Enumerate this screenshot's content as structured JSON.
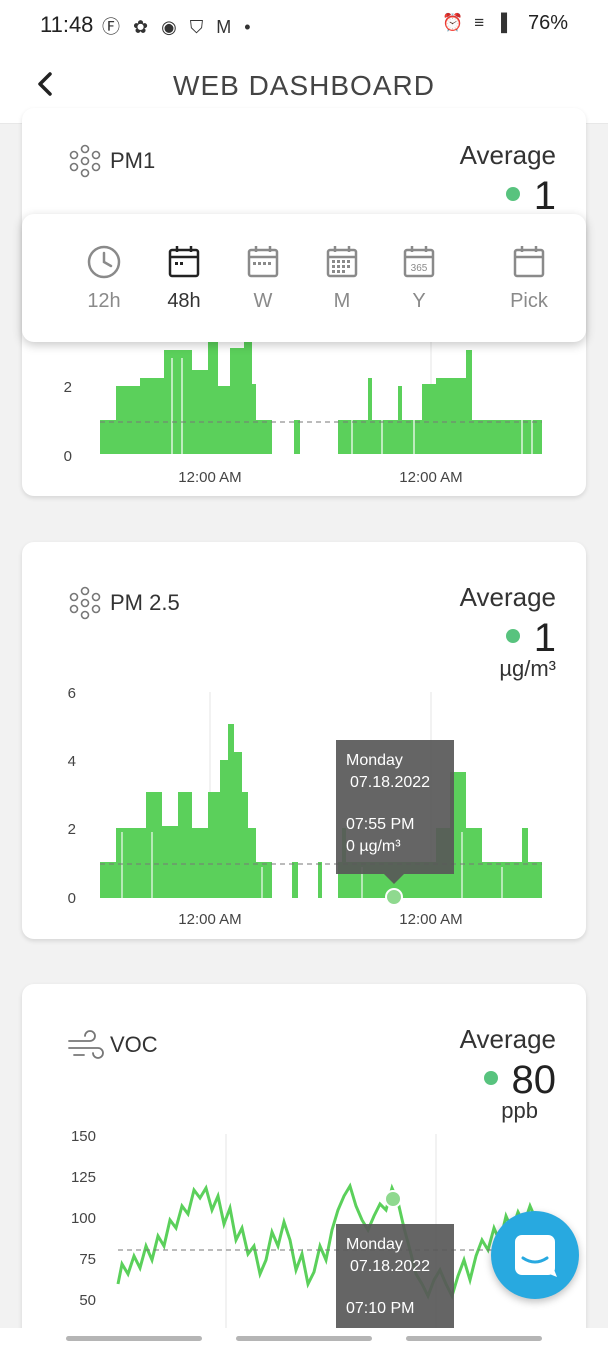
{
  "status_bar": {
    "time": "11:48",
    "left_icons": "Ⓕ ✿ ◉ ⛉ M •",
    "right_icons": "⏰ ≡ ▐",
    "battery": "76%"
  },
  "header": {
    "title": "WEB DASHBOARD",
    "back_icon": "back-arrow-icon"
  },
  "range_selector": {
    "options": [
      {
        "label": "12h",
        "icon": "clock-icon",
        "active": false
      },
      {
        "label": "48h",
        "icon": "calendar-icon",
        "active": true
      },
      {
        "label": "W",
        "icon": "calendar-week-icon",
        "active": false
      },
      {
        "label": "M",
        "icon": "calendar-month-icon",
        "active": false
      },
      {
        "label": "Y",
        "icon": "calendar-365-icon",
        "icon_text": "365",
        "active": false
      },
      {
        "label": "Pick",
        "icon": "calendar-pick-icon",
        "active": false
      }
    ]
  },
  "cards": {
    "pm1": {
      "name": "PM1",
      "icon": "particles-icon",
      "average_label": "Average",
      "average_value": "1",
      "chart_data": {
        "type": "line",
        "series_color": "#5bd05b",
        "average_line": 1,
        "y_ticks": [
          "0",
          "2"
        ],
        "x_ticks": [
          "12:00 AM",
          "12:00 AM"
        ]
      }
    },
    "pm25": {
      "name": "PM 2.5",
      "icon": "particles-icon",
      "average_label": "Average",
      "average_value": "1",
      "unit": "µg/m³",
      "chart_data": {
        "type": "line",
        "series_color": "#5bd05b",
        "average_line": 1,
        "y_ticks": [
          "0",
          "2",
          "4",
          "6"
        ],
        "ylim": [
          0,
          6
        ],
        "x_ticks": [
          "12:00 AM",
          "12:00 AM"
        ]
      },
      "tooltip": {
        "day": "Monday",
        "date": "07.18.2022",
        "time": "07:55 PM",
        "value": "0 µg/m³"
      }
    },
    "voc": {
      "name": "VOC",
      "icon": "wind-icon",
      "average_label": "Average",
      "average_value": "80",
      "unit": "ppb",
      "chart_data": {
        "type": "line",
        "series_color": "#5bd05b",
        "average_line": 80,
        "y_ticks": [
          "50",
          "75",
          "100",
          "125",
          "150"
        ],
        "ylim": [
          50,
          150
        ]
      },
      "tooltip": {
        "day": "Monday",
        "date": "07.18.2022",
        "time": "07:10 PM"
      }
    }
  },
  "fab": {
    "icon": "chat-icon"
  }
}
